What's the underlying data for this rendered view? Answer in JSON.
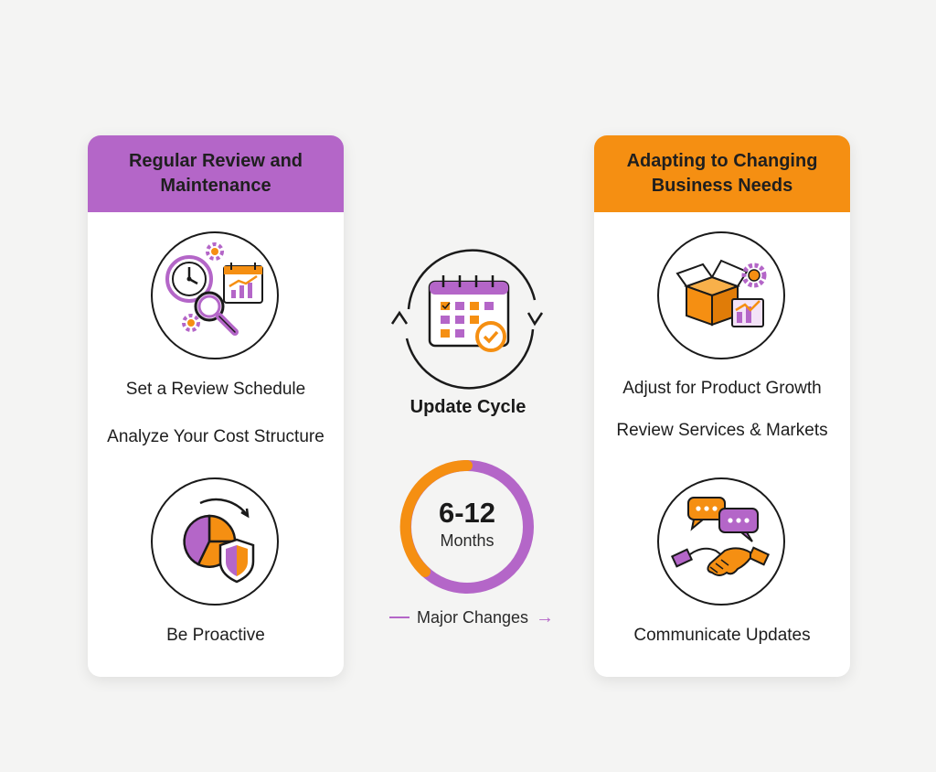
{
  "colors": {
    "purple": "#b466c8",
    "orange": "#f58f12",
    "background": "#f4f4f3"
  },
  "left_card": {
    "title": "Regular Review and Maintenance",
    "icons": [
      "schedule-review-icon",
      "cost-structure-pie-shield-icon"
    ],
    "items": [
      "Set a Review Schedule",
      "Analyze Your Cost Structure",
      "Be Proactive"
    ]
  },
  "center": {
    "cycle_icon": "calendar-cycle-icon",
    "cycle_label": "Update Cycle",
    "donut": {
      "value": "6-12",
      "unit": "Months"
    },
    "note": "Major Changes"
  },
  "right_card": {
    "title": "Adapting to Changing Business Needs",
    "icons": [
      "product-box-growth-icon",
      "chat-handshake-icon"
    ],
    "items": [
      "Adjust for Product Growth",
      "Review Services & Markets",
      "Communicate Updates"
    ]
  }
}
